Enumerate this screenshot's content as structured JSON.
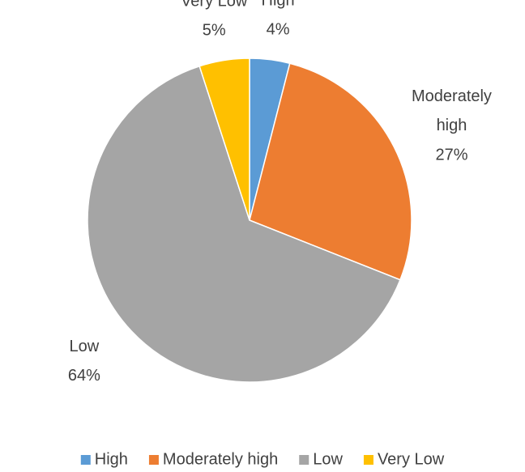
{
  "chart_data": {
    "type": "pie",
    "categories": [
      "High",
      "Moderately high",
      "Low",
      "Very Low"
    ],
    "values": [
      4,
      27,
      64,
      5
    ],
    "value_labels": [
      "4%",
      "27%",
      "64%",
      "5%"
    ],
    "colors": [
      "#5b9bd5",
      "#ed7d31",
      "#a5a5a5",
      "#ffc000"
    ],
    "legend": "bottom"
  }
}
